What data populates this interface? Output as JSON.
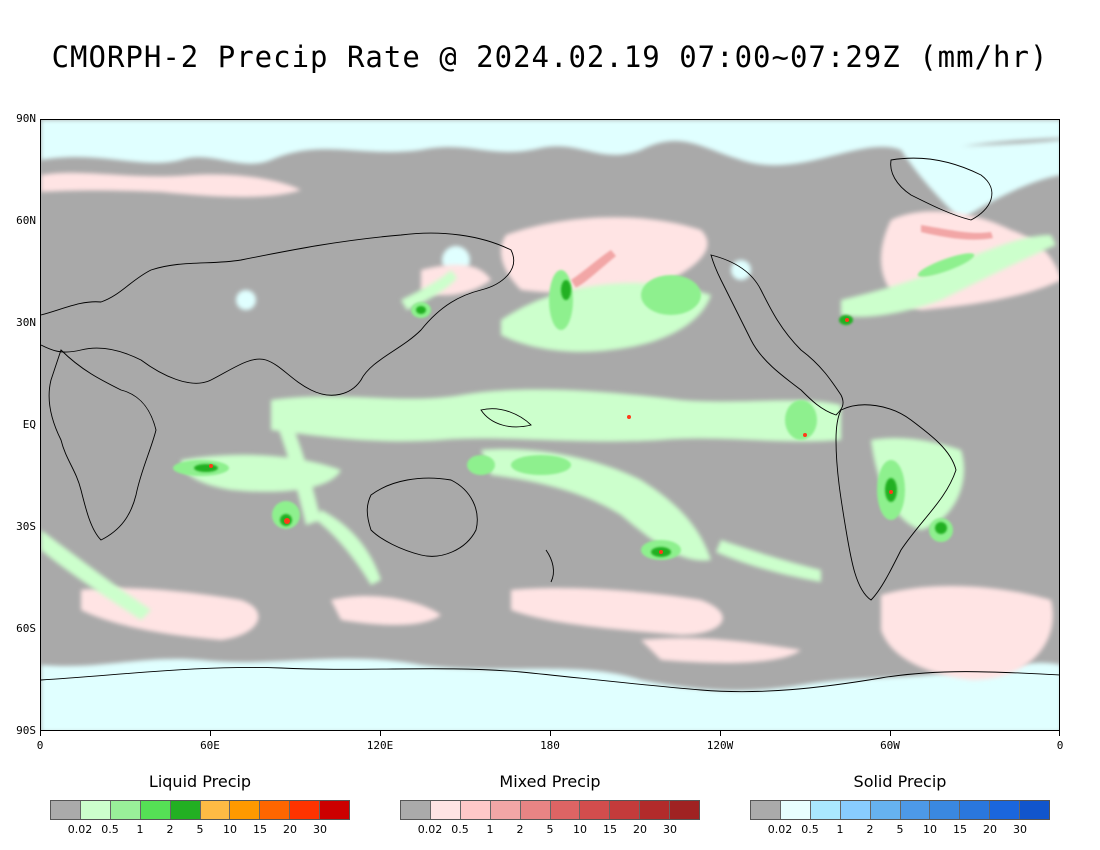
{
  "title": "CMORPH-2 Precip Rate @ 2024.02.19 07:00~07:29Z (mm/hr)",
  "map": {
    "background_color": "#a9a9a9",
    "lat_labels": [
      "90N",
      "60N",
      "30N",
      "EQ",
      "30S",
      "60S",
      "90S"
    ],
    "lon_labels": [
      "0",
      "60E",
      "120E",
      "180",
      "120W",
      "60W",
      "0"
    ],
    "colors": {
      "liquid_light": "#ccffcc",
      "liquid_mid": "#8ef08e",
      "liquid_heavy": "#22b022",
      "liquid_extreme": "#ff3b1a",
      "mixed_light": "#ffe4e4",
      "mixed_mid": "#f2a6a6",
      "solid_light": "#e0ffff"
    }
  },
  "legends": [
    {
      "title": "Liquid Precip",
      "colors": [
        "#aaaaaa",
        "#ccffcc",
        "#99f099",
        "#55e055",
        "#22b022",
        "#ffbb44",
        "#ff9900",
        "#ff6600",
        "#ff3300",
        "#cc0000"
      ],
      "ticks": [
        "0.02",
        "0.5",
        "1",
        "2",
        "5",
        "10",
        "15",
        "20",
        "30"
      ]
    },
    {
      "title": "Mixed Precip",
      "colors": [
        "#aaaaaa",
        "#ffe4e4",
        "#ffc8c8",
        "#f2a6a6",
        "#e88484",
        "#dd6464",
        "#d24d4d",
        "#c43b3b",
        "#b22b2b",
        "#a02222"
      ],
      "ticks": [
        "0.02",
        "0.5",
        "1",
        "2",
        "5",
        "10",
        "15",
        "20",
        "30"
      ]
    },
    {
      "title": "Solid Precip",
      "colors": [
        "#aaaaaa",
        "#e8ffff",
        "#aae8ff",
        "#88ccff",
        "#66b2f0",
        "#4d99e8",
        "#3a88e0",
        "#2a77dd",
        "#1a66dd",
        "#1155cc"
      ],
      "ticks": [
        "0.02",
        "0.5",
        "1",
        "2",
        "5",
        "10",
        "15",
        "20",
        "30"
      ]
    }
  ]
}
